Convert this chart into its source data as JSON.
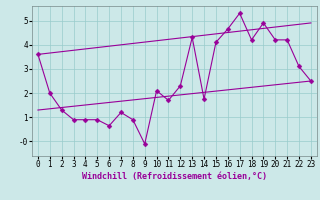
{
  "title": "",
  "xlabel": "Windchill (Refroidissement éolien,°C)",
  "background_color": "#cce8e8",
  "line_color": "#990099",
  "grid_color": "#99cccc",
  "xlim": [
    -0.5,
    23.5
  ],
  "ylim": [
    -0.6,
    5.6
  ],
  "yticks": [
    0,
    1,
    2,
    3,
    4,
    5
  ],
  "ytick_labels": [
    "-0",
    "1",
    "2",
    "3",
    "4",
    "5"
  ],
  "xticks": [
    0,
    1,
    2,
    3,
    4,
    5,
    6,
    7,
    8,
    9,
    10,
    11,
    12,
    13,
    14,
    15,
    16,
    17,
    18,
    19,
    20,
    21,
    22,
    23
  ],
  "line1_x": [
    0,
    1,
    2,
    3,
    4,
    5,
    6,
    7,
    8,
    9,
    10,
    11,
    12,
    13,
    14,
    15,
    16,
    17,
    18,
    19,
    20,
    21,
    22,
    23
  ],
  "line1_y": [
    3.6,
    2.0,
    1.3,
    0.9,
    0.9,
    0.9,
    0.65,
    1.2,
    0.9,
    -0.1,
    2.1,
    1.7,
    2.3,
    4.3,
    1.75,
    4.1,
    4.65,
    5.3,
    4.2,
    4.9,
    4.2,
    4.2,
    3.1,
    2.5
  ],
  "line2_x": [
    0,
    23
  ],
  "line2_y": [
    1.3,
    2.5
  ],
  "line3_x": [
    0,
    23
  ],
  "line3_y": [
    3.6,
    4.9
  ],
  "markersize": 2.5,
  "linewidth": 0.8,
  "xlabel_fontsize": 6,
  "tick_fontsize": 5.5
}
